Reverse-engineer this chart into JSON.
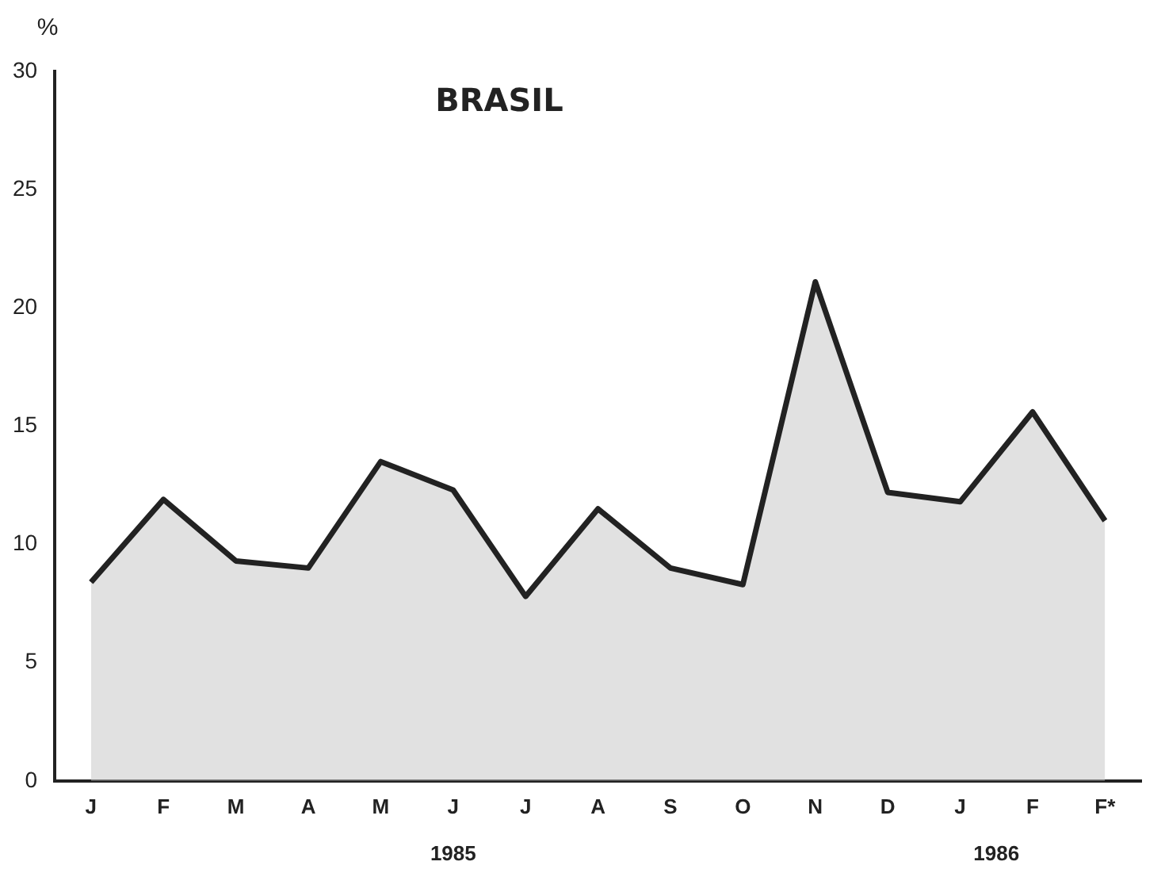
{
  "chart_data": {
    "type": "area",
    "title": "BRASIL",
    "ylabel": "%",
    "categories": [
      "J",
      "F",
      "M",
      "A",
      "M",
      "J",
      "J",
      "A",
      "S",
      "O",
      "N",
      "D",
      "J",
      "F",
      "F*"
    ],
    "series": [
      {
        "color": "#222222",
        "values": [
          8.4,
          11.9,
          9.3,
          9.0,
          13.5,
          12.3,
          7.8,
          11.5,
          9.0,
          8.3,
          21.1,
          12.2,
          11.8,
          15.6,
          11.0
        ]
      }
    ],
    "ylim": [
      0,
      30
    ],
    "yticks": [
      0,
      5,
      10,
      15,
      20,
      25,
      30
    ],
    "grid": false,
    "legend": false,
    "marker": "none",
    "line_style": "solid",
    "annotations": [
      "1985",
      "1986"
    ]
  }
}
